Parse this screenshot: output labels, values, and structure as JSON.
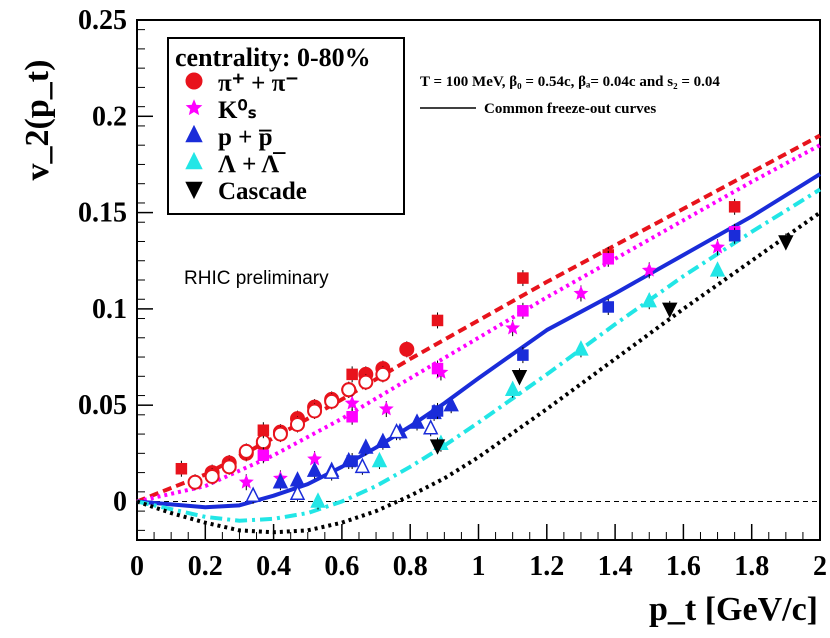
{
  "chart_data": {
    "type": "scatter",
    "title": "",
    "xlabel": "p_t [GeV/c]",
    "ylabel": "v_2(p_t)",
    "xlim": [
      0,
      2
    ],
    "ylim": [
      -0.02,
      0.25
    ],
    "x_ticks": [
      0,
      0.2,
      0.4,
      0.6,
      0.8,
      1,
      1.2,
      1.4,
      1.6,
      1.8,
      2
    ],
    "x_tick_labels": [
      "0",
      "0.2",
      "0.4",
      "0.6",
      "0.8",
      "1",
      "1.2",
      "1.4",
      "1.6",
      "1.8",
      "2"
    ],
    "y_ticks": [
      0,
      0.05,
      0.1,
      0.15,
      0.2,
      0.25
    ],
    "y_tick_labels": [
      "0",
      "0.05",
      "0.1",
      "0.15",
      "0.2",
      "0.25"
    ],
    "legend_title": "centrality: 0-80%",
    "legend_position": "top-left",
    "params_text": "T = 100 MeV, β₀ = 0.54c, βₐ= 0.04c and s₂ = 0.04",
    "curves_label": "Common freeze-out curves",
    "annotation": "RHIC preliminary",
    "zero_line": true,
    "series": [
      {
        "name": "pion",
        "label": "π⁺ + π⁻",
        "color": "#e8131c",
        "marker": "circle",
        "filled": true,
        "points": [
          [
            0.22,
            0.015
          ],
          [
            0.27,
            0.02
          ],
          [
            0.32,
            0.025
          ],
          [
            0.37,
            0.03
          ],
          [
            0.42,
            0.036
          ],
          [
            0.47,
            0.043
          ],
          [
            0.52,
            0.049
          ],
          [
            0.57,
            0.053
          ],
          [
            0.62,
            0.058
          ],
          [
            0.67,
            0.066
          ],
          [
            0.72,
            0.069
          ],
          [
            0.79,
            0.079
          ]
        ]
      },
      {
        "name": "pion-open",
        "label": "",
        "color": "#e8131c",
        "marker": "circle",
        "filled": false,
        "points": [
          [
            0.17,
            0.01
          ],
          [
            0.22,
            0.013
          ],
          [
            0.27,
            0.018
          ],
          [
            0.32,
            0.026
          ],
          [
            0.37,
            0.031
          ],
          [
            0.42,
            0.035
          ],
          [
            0.47,
            0.04
          ],
          [
            0.52,
            0.047
          ],
          [
            0.57,
            0.052
          ],
          [
            0.62,
            0.058
          ],
          [
            0.67,
            0.062
          ],
          [
            0.72,
            0.066
          ]
        ]
      },
      {
        "name": "pion-square",
        "label": "",
        "color": "#e8131c",
        "marker": "square",
        "filled": true,
        "points": [
          [
            0.13,
            0.017
          ],
          [
            0.37,
            0.037
          ],
          [
            0.63,
            0.066
          ],
          [
            0.88,
            0.094
          ],
          [
            1.13,
            0.116
          ],
          [
            1.38,
            0.128
          ],
          [
            1.75,
            0.153
          ]
        ]
      },
      {
        "name": "kaon",
        "label": "K⁰ₛ",
        "color": "#ff00ff",
        "marker": "star",
        "filled": true,
        "points": [
          [
            0.32,
            0.01
          ],
          [
            0.42,
            0.012
          ],
          [
            0.52,
            0.022
          ],
          [
            0.63,
            0.051
          ],
          [
            0.73,
            0.048
          ],
          [
            0.89,
            0.067
          ],
          [
            1.1,
            0.09
          ],
          [
            1.3,
            0.108
          ],
          [
            1.5,
            0.12
          ],
          [
            1.7,
            0.132
          ]
        ]
      },
      {
        "name": "kaon-square",
        "label": "",
        "color": "#ff00ff",
        "marker": "square",
        "filled": true,
        "points": [
          [
            0.37,
            0.024
          ],
          [
            0.63,
            0.044
          ],
          [
            0.88,
            0.069
          ],
          [
            1.13,
            0.099
          ],
          [
            1.38,
            0.126
          ],
          [
            1.75,
            0.14
          ]
        ]
      },
      {
        "name": "proton",
        "label": "p + p̅",
        "color": "#1a2cd9",
        "marker": "triangle-up",
        "filled": true,
        "points": [
          [
            0.42,
            0.01
          ],
          [
            0.47,
            0.011
          ],
          [
            0.52,
            0.016
          ],
          [
            0.57,
            0.016
          ],
          [
            0.62,
            0.021
          ],
          [
            0.67,
            0.028
          ],
          [
            0.72,
            0.031
          ],
          [
            0.77,
            0.036
          ],
          [
            0.82,
            0.041
          ],
          [
            0.87,
            0.046
          ],
          [
            0.92,
            0.05
          ]
        ]
      },
      {
        "name": "proton-open",
        "label": "",
        "color": "#1a2cd9",
        "marker": "triangle-up",
        "filled": false,
        "points": [
          [
            0.34,
            0.003
          ],
          [
            0.47,
            0.004
          ],
          [
            0.57,
            0.015
          ],
          [
            0.66,
            0.018
          ],
          [
            0.76,
            0.036
          ],
          [
            0.86,
            0.038
          ]
        ]
      },
      {
        "name": "proton-square",
        "label": "",
        "color": "#1a2cd9",
        "marker": "square",
        "filled": true,
        "points": [
          [
            0.63,
            0.021
          ],
          [
            0.88,
            0.047
          ],
          [
            1.13,
            0.076
          ],
          [
            1.38,
            0.101
          ],
          [
            1.75,
            0.138
          ]
        ]
      },
      {
        "name": "lambda",
        "label": "Λ + Λ̅",
        "color": "#22e6e6",
        "marker": "triangle-up",
        "filled": true,
        "points": [
          [
            0.53,
            0.0
          ],
          [
            0.71,
            0.021
          ],
          [
            0.89,
            0.03
          ],
          [
            1.1,
            0.058
          ],
          [
            1.3,
            0.079
          ],
          [
            1.5,
            0.104
          ],
          [
            1.7,
            0.12
          ]
        ]
      },
      {
        "name": "cascade",
        "label": "Cascade",
        "color": "#000000",
        "marker": "triangle-down",
        "filled": true,
        "points": [
          [
            0.88,
            0.029
          ],
          [
            1.12,
            0.065
          ],
          [
            1.56,
            0.1
          ],
          [
            1.9,
            0.135
          ]
        ]
      }
    ],
    "curves": [
      {
        "name": "pion-curve",
        "color": "#e8131c",
        "style": "dashed",
        "x": [
          0,
          0.2,
          0.4,
          0.6,
          0.8,
          1.0,
          1.2,
          1.4,
          1.6,
          1.8,
          2.0
        ],
        "y": [
          0,
          0.014,
          0.033,
          0.053,
          0.074,
          0.094,
          0.114,
          0.133,
          0.152,
          0.171,
          0.19
        ]
      },
      {
        "name": "kaon-curve",
        "color": "#ff00ff",
        "style": "dotted",
        "x": [
          0,
          0.2,
          0.4,
          0.6,
          0.8,
          1.0,
          1.2,
          1.4,
          1.6,
          1.8,
          2.0
        ],
        "y": [
          0,
          0.008,
          0.024,
          0.043,
          0.064,
          0.085,
          0.106,
          0.126,
          0.146,
          0.166,
          0.185
        ]
      },
      {
        "name": "proton-curve",
        "color": "#1a2cd9",
        "style": "solid",
        "x": [
          0,
          0.1,
          0.2,
          0.3,
          0.4,
          0.5,
          0.6,
          0.7,
          0.8,
          0.9,
          1.0,
          1.2,
          1.4,
          1.6,
          1.8,
          2.0
        ],
        "y": [
          0,
          -0.0015,
          -0.003,
          -0.002,
          0.003,
          0.009,
          0.018,
          0.028,
          0.039,
          0.051,
          0.064,
          0.089,
          0.108,
          0.128,
          0.148,
          0.17
        ]
      },
      {
        "name": "lambda-curve",
        "color": "#22e6e6",
        "style": "dashdot",
        "x": [
          0,
          0.1,
          0.2,
          0.3,
          0.4,
          0.5,
          0.6,
          0.7,
          0.8,
          0.9,
          1.0,
          1.2,
          1.4,
          1.6,
          1.8,
          2.0
        ],
        "y": [
          0,
          -0.004,
          -0.008,
          -0.01,
          -0.009,
          -0.006,
          0.0,
          0.008,
          0.018,
          0.029,
          0.041,
          0.066,
          0.092,
          0.117,
          0.14,
          0.162
        ]
      },
      {
        "name": "cascade-curve",
        "color": "#000000",
        "style": "dotted",
        "x": [
          0,
          0.1,
          0.2,
          0.3,
          0.4,
          0.5,
          0.6,
          0.7,
          0.8,
          0.9,
          1.0,
          1.2,
          1.4,
          1.6,
          1.8,
          2.0
        ],
        "y": [
          0,
          -0.006,
          -0.011,
          -0.015,
          -0.016,
          -0.015,
          -0.011,
          -0.005,
          0.003,
          0.012,
          0.023,
          0.048,
          0.074,
          0.1,
          0.125,
          0.15
        ]
      }
    ]
  }
}
